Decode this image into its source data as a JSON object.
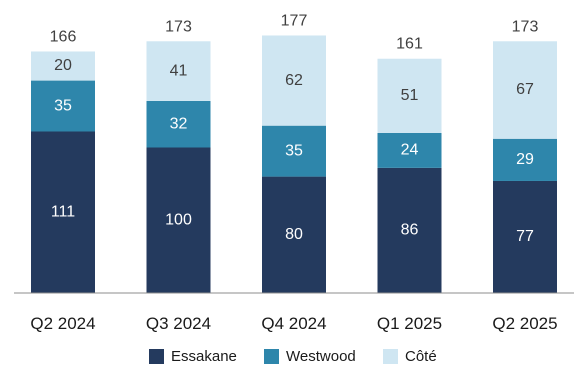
{
  "chart_data": {
    "type": "bar",
    "stacked": true,
    "categories": [
      "Q2 2024",
      "Q3 2024",
      "Q4 2024",
      "Q1 2025",
      "Q2 2025"
    ],
    "series": [
      {
        "name": "Essakane",
        "color": "#243a5e",
        "label_color": "#ffffff",
        "values": [
          111,
          100,
          80,
          86,
          77
        ]
      },
      {
        "name": "Westwood",
        "color": "#2e86ab",
        "label_color": "#ffffff",
        "values": [
          35,
          32,
          35,
          24,
          29
        ]
      },
      {
        "name": "Côté",
        "color": "#cfe6f2",
        "label_color": "#404040",
        "values": [
          20,
          41,
          62,
          51,
          67
        ]
      }
    ],
    "totals": [
      166,
      173,
      177,
      161,
      173
    ],
    "ylim": [
      0,
      177
    ],
    "legend_position": "bottom-center",
    "grid": false
  }
}
